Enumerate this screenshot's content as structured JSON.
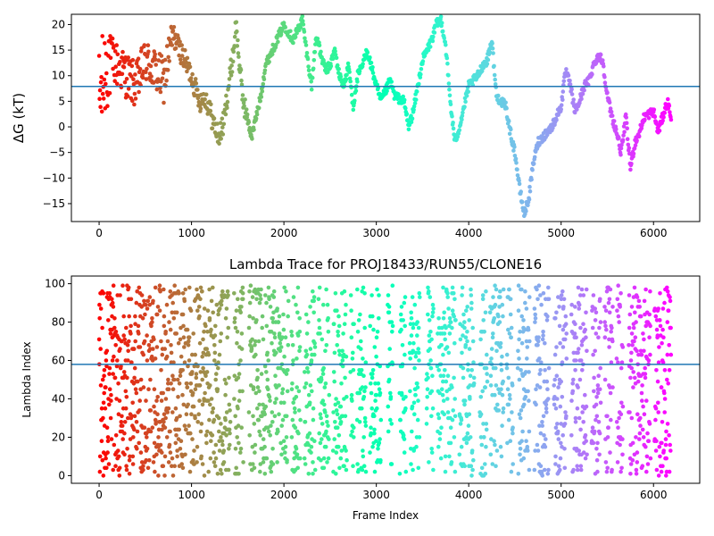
{
  "chart_data": [
    {
      "type": "scatter",
      "title": "",
      "xlabel": "",
      "ylabel": "ΔG (kT)",
      "xlim": [
        -300,
        6500
      ],
      "ylim": [
        -18.5,
        22
      ],
      "xticks": [
        0,
        1000,
        2000,
        3000,
        4000,
        5000,
        6000
      ],
      "yticks": [
        -15,
        -10,
        -5,
        0,
        5,
        10,
        15,
        20
      ],
      "hline": 7.9,
      "hline_color": "#1f77b4",
      "colormap": "rainbow_r",
      "grid": false,
      "x_range": [
        0,
        6190
      ],
      "waypoints": [
        [
          0,
          5
        ],
        [
          100,
          14
        ],
        [
          200,
          12
        ],
        [
          300,
          10
        ],
        [
          400,
          8
        ],
        [
          500,
          13
        ],
        [
          600,
          11
        ],
        [
          700,
          9
        ],
        [
          800,
          18
        ],
        [
          900,
          14
        ],
        [
          1000,
          10
        ],
        [
          1050,
          7
        ],
        [
          1100,
          5
        ],
        [
          1150,
          6
        ],
        [
          1200,
          3
        ],
        [
          1250,
          0
        ],
        [
          1300,
          -2
        ],
        [
          1350,
          1
        ],
        [
          1400,
          8
        ],
        [
          1450,
          14
        ],
        [
          1480,
          20
        ],
        [
          1500,
          16
        ],
        [
          1550,
          6
        ],
        [
          1600,
          2
        ],
        [
          1650,
          -2
        ],
        [
          1700,
          2
        ],
        [
          1750,
          6
        ],
        [
          1800,
          12
        ],
        [
          1900,
          16
        ],
        [
          2000,
          20
        ],
        [
          2100,
          17
        ],
        [
          2200,
          21
        ],
        [
          2250,
          14
        ],
        [
          2300,
          8
        ],
        [
          2350,
          18
        ],
        [
          2400,
          14
        ],
        [
          2450,
          11
        ],
        [
          2500,
          12
        ],
        [
          2550,
          15
        ],
        [
          2600,
          10
        ],
        [
          2650,
          8
        ],
        [
          2700,
          12
        ],
        [
          2750,
          4
        ],
        [
          2800,
          10
        ],
        [
          2850,
          12
        ],
        [
          2900,
          15
        ],
        [
          3000,
          8
        ],
        [
          3050,
          5
        ],
        [
          3100,
          7
        ],
        [
          3150,
          9
        ],
        [
          3200,
          6
        ],
        [
          3300,
          5
        ],
        [
          3350,
          0
        ],
        [
          3400,
          3
        ],
        [
          3450,
          8
        ],
        [
          3500,
          13
        ],
        [
          3550,
          15
        ],
        [
          3600,
          17
        ],
        [
          3650,
          20
        ],
        [
          3700,
          21
        ],
        [
          3750,
          16
        ],
        [
          3800,
          5
        ],
        [
          3850,
          -3
        ],
        [
          3900,
          0
        ],
        [
          3950,
          4
        ],
        [
          4000,
          8
        ],
        [
          4100,
          10
        ],
        [
          4150,
          12
        ],
        [
          4200,
          13
        ],
        [
          4250,
          17
        ],
        [
          4300,
          6
        ],
        [
          4400,
          4
        ],
        [
          4450,
          -1
        ],
        [
          4500,
          -5
        ],
        [
          4550,
          -12
        ],
        [
          4600,
          -17
        ],
        [
          4650,
          -14
        ],
        [
          4700,
          -7
        ],
        [
          4750,
          -3
        ],
        [
          4800,
          -2
        ],
        [
          4900,
          0
        ],
        [
          5000,
          4
        ],
        [
          5050,
          11
        ],
        [
          5100,
          8
        ],
        [
          5150,
          3
        ],
        [
          5200,
          5
        ],
        [
          5250,
          8
        ],
        [
          5300,
          9
        ],
        [
          5350,
          12
        ],
        [
          5400,
          14
        ],
        [
          5450,
          13
        ],
        [
          5500,
          6
        ],
        [
          5550,
          2
        ],
        [
          5600,
          -1
        ],
        [
          5650,
          -5
        ],
        [
          5700,
          2
        ],
        [
          5750,
          -8
        ],
        [
          5800,
          -3
        ],
        [
          5850,
          -1
        ],
        [
          5900,
          2
        ],
        [
          6000,
          3
        ],
        [
          6050,
          -1
        ],
        [
          6100,
          2
        ],
        [
          6150,
          5
        ],
        [
          6190,
          2
        ]
      ]
    },
    {
      "type": "scatter",
      "title": "Lambda Trace for PROJ18433/RUN55/CLONE16",
      "xlabel": "Frame Index",
      "ylabel": "Lambda Index",
      "xlim": [
        -300,
        6500
      ],
      "ylim": [
        -4,
        104
      ],
      "xticks": [
        0,
        1000,
        2000,
        3000,
        4000,
        5000,
        6000
      ],
      "yticks": [
        0,
        20,
        40,
        60,
        80,
        100
      ],
      "hline": 58,
      "hline_color": "#1f77b4",
      "colormap": "rainbow_r",
      "grid": false,
      "value_range": [
        0,
        99
      ],
      "x_range": [
        0,
        6190
      ],
      "gaps": [
        [
          1420,
          1460
        ],
        [
          1560,
          1620
        ],
        [
          2050,
          2080
        ],
        [
          2180,
          2220
        ],
        [
          2340,
          2370
        ],
        [
          2490,
          2530
        ],
        [
          2680,
          2720
        ],
        [
          2760,
          2790
        ],
        [
          2890,
          2930
        ],
        [
          3050,
          3120
        ],
        [
          3180,
          3250
        ],
        [
          3320,
          3360
        ],
        [
          3470,
          3540
        ],
        [
          3620,
          3660
        ],
        [
          3860,
          3900
        ],
        [
          4060,
          4120
        ],
        [
          4200,
          4230
        ],
        [
          4380,
          4410
        ],
        [
          4480,
          4530
        ],
        [
          4660,
          4710
        ],
        [
          4870,
          4920
        ],
        [
          5060,
          5110
        ],
        [
          5280,
          5330
        ],
        [
          5430,
          5470
        ],
        [
          5560,
          5600
        ],
        [
          5670,
          5730
        ],
        [
          5970,
          6010
        ]
      ]
    }
  ]
}
